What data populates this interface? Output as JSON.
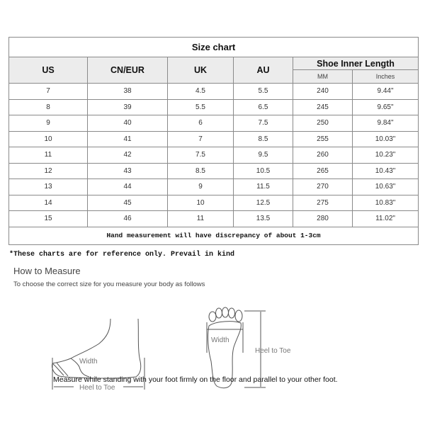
{
  "table": {
    "title": "Size chart",
    "headers": [
      "US",
      "CN/EUR",
      "UK",
      "AU",
      "Shoe Inner Length"
    ],
    "subheaders": [
      "MM",
      "Inches"
    ],
    "rows": [
      [
        "7",
        "38",
        "4.5",
        "5.5",
        "240",
        "9.44\""
      ],
      [
        "8",
        "39",
        "5.5",
        "6.5",
        "245",
        "9.65\""
      ],
      [
        "9",
        "40",
        "6",
        "7.5",
        "250",
        "9.84\""
      ],
      [
        "10",
        "41",
        "7",
        "8.5",
        "255",
        "10.03\""
      ],
      [
        "11",
        "42",
        "7.5",
        "9.5",
        "260",
        "10.23\""
      ],
      [
        "12",
        "43",
        "8.5",
        "10.5",
        "265",
        "10.43\""
      ],
      [
        "13",
        "44",
        "9",
        "11.5",
        "270",
        "10.63\""
      ],
      [
        "14",
        "45",
        "10",
        "12.5",
        "275",
        "10.83\""
      ],
      [
        "15",
        "46",
        "11",
        "13.5",
        "280",
        "11.02\""
      ]
    ],
    "note": "Hand measurement will have discrepancy of about 1-3cm"
  },
  "reference_note": "*These charts are for reference only. Prevail in kind",
  "how_to": {
    "title": "How to Measure",
    "subtitle": "To choose the correct size for you measure your body as follows",
    "side_labels": {
      "width": "Width",
      "length": "Heel to Toe"
    },
    "sole_labels": {
      "width": "Width",
      "length": "Heel to Toe"
    },
    "caption": "Measure while standing with your foot firmly on the floor and parallel to your other foot."
  }
}
